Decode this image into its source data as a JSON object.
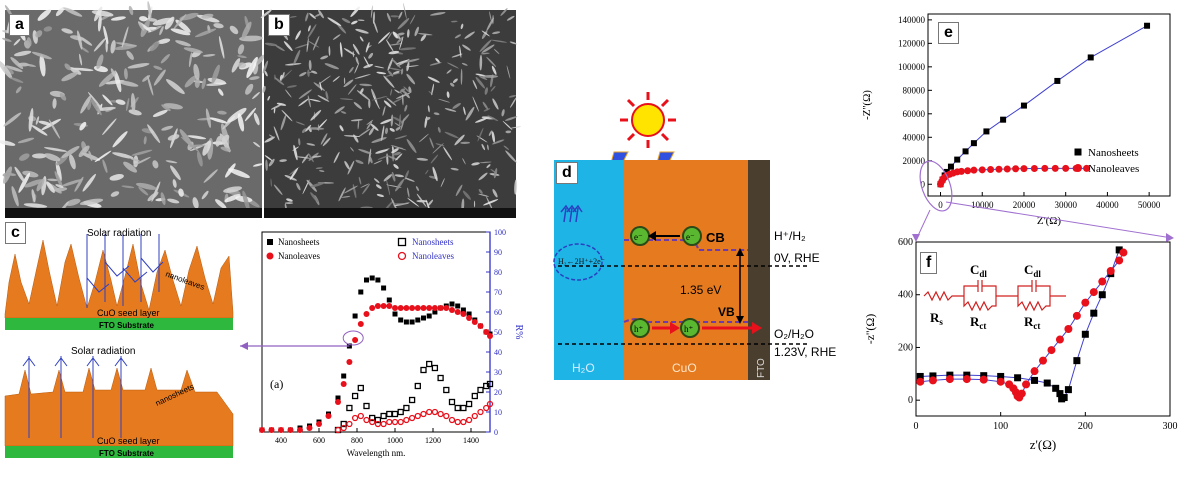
{
  "panels": {
    "a": {
      "label": "a"
    },
    "b": {
      "label": "b"
    },
    "c": {
      "label": "c",
      "diagram_top": {
        "radiation": "Solar radiation",
        "material": "nanoleaves",
        "seed": "CuO seed layer",
        "substrate": "FTO Substrate"
      },
      "diagram_bottom": {
        "radiation": "Solar radiation",
        "material": "nanosheets",
        "seed": "CuO seed layer",
        "substrate": "FTO Substrate"
      }
    },
    "reflectance": {
      "sublabel": "(a)",
      "chart_data": {
        "type": "scatter",
        "xlabel": "Wavelength nm.",
        "ylabel_right": "R%",
        "xlim": [
          300,
          1500
        ],
        "ylim_left": [
          0,
          100
        ],
        "ylim_right": [
          0,
          100
        ],
        "x_ticks": [
          400,
          600,
          800,
          1000,
          1200,
          1400
        ],
        "y_ticks": [
          0,
          10,
          20,
          30,
          40,
          50,
          60,
          70,
          80,
          90,
          100
        ],
        "legend_left": "top-left",
        "legend_right": "top-right",
        "series": [
          {
            "name": "Nanosheets",
            "marker": "filled-square",
            "color": "#000000",
            "axis": "left",
            "x": [
              300,
              350,
              400,
              450,
              500,
              550,
              600,
              650,
              700,
              730,
              760,
              790,
              820,
              850,
              880,
              910,
              940,
              970,
              1000,
              1030,
              1060,
              1090,
              1120,
              1150,
              1180,
              1210,
              1240,
              1270,
              1300,
              1330,
              1360,
              1390,
              1420,
              1450,
              1480,
              1500
            ],
            "y": [
              1,
              1,
              1,
              1,
              2,
              3,
              5,
              9,
              17,
              28,
              43,
              58,
              70,
              76,
              77,
              76,
              72,
              66,
              59,
              56,
              55,
              55,
              56,
              57,
              58,
              60,
              62,
              63,
              64,
              63,
              61,
              59,
              56,
              53,
              50,
              49
            ]
          },
          {
            "name": "Nanoleaves",
            "marker": "filled-circle",
            "color": "#e8101b",
            "axis": "left",
            "x": [
              300,
              350,
              400,
              450,
              500,
              550,
              600,
              650,
              700,
              730,
              760,
              790,
              820,
              850,
              880,
              910,
              940,
              970,
              1000,
              1030,
              1060,
              1090,
              1120,
              1150,
              1180,
              1210,
              1240,
              1270,
              1300,
              1330,
              1360,
              1390,
              1420,
              1450,
              1480,
              1500
            ],
            "y": [
              1,
              1,
              1,
              1,
              1,
              2,
              4,
              8,
              15,
              24,
              35,
              46,
              54,
              59,
              62,
              63,
              63,
              63,
              62,
              62,
              62,
              62,
              62,
              62,
              62,
              62,
              62,
              62,
              61,
              60,
              59,
              57,
              55,
              53,
              50,
              48
            ]
          },
          {
            "name": "Nanosheets",
            "marker": "open-square",
            "color": "#000000",
            "axis": "right",
            "x": [
              700,
              730,
              760,
              790,
              820,
              850,
              880,
              910,
              940,
              970,
              1000,
              1030,
              1060,
              1090,
              1120,
              1150,
              1180,
              1210,
              1240,
              1270,
              1300,
              1330,
              1360,
              1390,
              1420,
              1450,
              1480,
              1500
            ],
            "y": [
              1,
              4,
              12,
              18,
              22,
              13,
              7,
              6,
              8,
              9,
              9,
              10,
              12,
              16,
              23,
              31,
              34,
              32,
              27,
              21,
              15,
              12,
              12,
              14,
              18,
              21,
              23,
              24
            ]
          },
          {
            "name": "Nanoleaves",
            "marker": "open-circle",
            "color": "#e8101b",
            "axis": "right",
            "x": [
              700,
              730,
              760,
              790,
              820,
              850,
              880,
              910,
              940,
              970,
              1000,
              1030,
              1060,
              1090,
              1120,
              1150,
              1180,
              1210,
              1240,
              1270,
              1300,
              1330,
              1360,
              1390,
              1420,
              1450,
              1480,
              1500
            ],
            "y": [
              1,
              2,
              4,
              7,
              8,
              6,
              5,
              4,
              4,
              5,
              5,
              5,
              6,
              7,
              8,
              9,
              10,
              10,
              9,
              8,
              6,
              5,
              5,
              6,
              8,
              10,
              12,
              14
            ]
          }
        ]
      }
    },
    "d": {
      "label": "d",
      "electron": "e⁻",
      "hole": "h⁺",
      "cb": "CB",
      "vb": "VB",
      "h_reaction": "H₂←2H⁺+2e⁻",
      "gap": "1.35 eV",
      "hplus": "H⁺/H₂",
      "hplus_v": "0V, RHE",
      "o2": "O₂/H₂O",
      "o2_v": "1.23V, RHE",
      "region_water": "H₂O",
      "region_cuo": "CuO",
      "region_fto": "FTO",
      "colors": {
        "water": "#1fb4e6",
        "cuo": "#e57a1f",
        "fto": "#4a3e2e"
      }
    },
    "e": {
      "label": "e",
      "chart_data": {
        "type": "scatter",
        "xlabel": "Z'(Ω)",
        "ylabel": "-Z''(Ω)",
        "xlim": [
          -3000,
          55000
        ],
        "ylim": [
          -10000,
          145000
        ],
        "x_ticks": [
          0,
          10000,
          20000,
          30000,
          40000,
          50000
        ],
        "y_ticks": [
          0,
          20000,
          40000,
          60000,
          80000,
          100000,
          120000,
          140000
        ],
        "legend": "right",
        "series": [
          {
            "name": "Nanosheets",
            "marker": "filled-square",
            "color": "#000000",
            "x": [
              0,
              500,
              1000,
              1500,
              2500,
              4000,
              6000,
              8000,
              11000,
              15000,
              20000,
              28000,
              36000,
              49500
            ],
            "y": [
              0,
              4000,
              7500,
              10500,
              15000,
              21000,
              28000,
              35000,
              45000,
              55000,
              67000,
              88000,
              108000,
              135000
            ]
          },
          {
            "name": "Nanoleaves",
            "marker": "filled-circle",
            "color": "#e8101b",
            "x": [
              0,
              300,
              600,
              1000,
              1500,
              2200,
              3000,
              4000,
              5000,
              6500,
              8000,
              10000,
              12000,
              14000,
              16000,
              18000,
              20000,
              22500,
              25000,
              27500,
              30000,
              32500,
              35000
            ],
            "y": [
              0,
              2500,
              4500,
              6000,
              7500,
              8500,
              9500,
              10500,
              11000,
              11500,
              12000,
              12300,
              12600,
              12800,
              13000,
              13200,
              13300,
              13400,
              13500,
              13500,
              13500,
              13500,
              13500
            ]
          }
        ]
      }
    },
    "f": {
      "label": "f",
      "circuit": {
        "c1": "C",
        "c1_sub": "dl",
        "c2": "C",
        "c2_sub": "dl",
        "rs": "R",
        "rs_sub": "s",
        "r1": "R",
        "r1_sub": "ct",
        "r2": "R",
        "r2_sub": "ct"
      },
      "chart_data": {
        "type": "scatter",
        "xlabel": "z'(Ω)",
        "ylabel": "-z''(Ω)",
        "xlim": [
          0,
          300
        ],
        "ylim": [
          -60,
          600
        ],
        "x_ticks": [
          0,
          100,
          200,
          300
        ],
        "y_ticks": [
          0,
          200,
          400,
          600
        ],
        "series": [
          {
            "name": "Nanosheets",
            "marker": "filled-square",
            "color": "#000000",
            "x": [
              5,
              20,
              40,
              60,
              80,
              100,
              120,
              140,
              155,
              165,
              170,
              172,
              175,
              180,
              190,
              200,
              210,
              220,
              230,
              240
            ],
            "y": [
              90,
              92,
              95,
              95,
              93,
              90,
              85,
              75,
              65,
              45,
              25,
              5,
              10,
              40,
              150,
              250,
              330,
              400,
              480,
              570
            ]
          },
          {
            "name": "Nanoleaves",
            "marker": "filled-circle",
            "color": "#e8101b",
            "x": [
              5,
              20,
              40,
              60,
              80,
              100,
              110,
              115,
              118,
              120,
              122,
              125,
              130,
              140,
              150,
              160,
              170,
              180,
              190,
              200,
              210,
              220,
              230,
              240,
              245
            ],
            "y": [
              70,
              75,
              80,
              80,
              78,
              70,
              60,
              45,
              30,
              15,
              10,
              25,
              60,
              110,
              150,
              190,
              230,
              270,
              320,
              370,
              410,
              450,
              490,
              530,
              560
            ]
          }
        ]
      }
    }
  }
}
